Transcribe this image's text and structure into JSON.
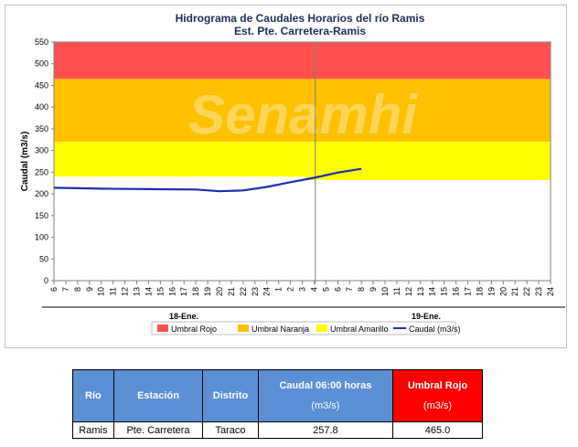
{
  "chart_data": {
    "type": "line",
    "title": "Hidrograma de Caudales Horarios del río Ramis",
    "subtitle": "Est. Pte. Carretera-Ramis",
    "ylabel": "Caudal  (m3/s)",
    "ylim": [
      0,
      550
    ],
    "yticks": [
      0,
      50,
      100,
      150,
      200,
      250,
      300,
      350,
      400,
      450,
      500,
      550
    ],
    "x_tick_labels": [
      "6",
      "7",
      "8",
      "9",
      "10",
      "11",
      "12",
      "13",
      "14",
      "15",
      "16",
      "17",
      "18",
      "19",
      "20",
      "21",
      "22",
      "23",
      "24",
      "1",
      "2",
      "3",
      "4",
      "5",
      "6",
      "7",
      "8",
      "9",
      "10",
      "11",
      "12",
      "13",
      "14",
      "15",
      "16",
      "17",
      "18",
      "19",
      "20",
      "21",
      "22",
      "23",
      "24"
    ],
    "day_labels": [
      "18-Ene.",
      "19-Ene."
    ],
    "day_boundary_index": 22,
    "thresholds": [
      {
        "name": "Umbral Rojo",
        "from": 465,
        "to": 550,
        "color": "#ff5050"
      },
      {
        "name": "Umbral Naranja",
        "from": 320,
        "to": 465,
        "color": "#ffc000"
      },
      {
        "name": "Umbral Amarillo",
        "from": 232,
        "to": 320,
        "color": "#ffff00"
      }
    ],
    "threshold_change_index": 21.3,
    "yellow_lower_before_change": 240,
    "series": [
      {
        "name": "Caudal (m3/s)",
        "color": "#1a2fb0",
        "x_index": [
          0,
          4,
          8,
          12,
          14,
          16,
          18,
          20,
          22,
          24,
          26
        ],
        "values": [
          214,
          212,
          211,
          210,
          206,
          208,
          216,
          227,
          237,
          249,
          257.8
        ]
      }
    ],
    "legend": [
      "Umbral Rojo",
      "Umbral Naranja",
      "Umbral Amarillo",
      "Caudal (m3/s)"
    ],
    "grid": false,
    "legend_position": "bottom"
  },
  "watermark": "Senamhi",
  "table": {
    "headers": [
      {
        "label": "Río",
        "sub": ""
      },
      {
        "label": "Estación",
        "sub": ""
      },
      {
        "label": "Distrito",
        "sub": ""
      },
      {
        "label": "Caudal 06:00 horas",
        "sub": "(m3/s)"
      },
      {
        "label": "Umbral Rojo",
        "sub": "(m3/s)"
      }
    ],
    "row": [
      "Ramis",
      "Pte. Carretera",
      "Taraco",
      "257.8",
      "465.0"
    ]
  }
}
